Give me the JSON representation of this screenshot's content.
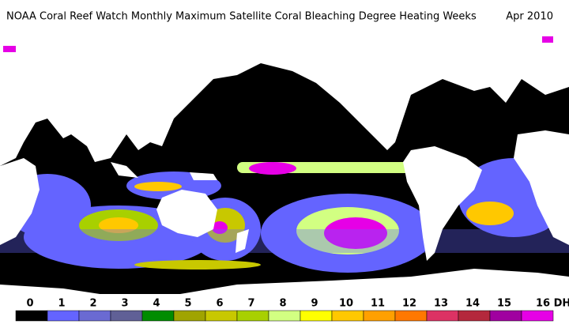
{
  "header": {
    "title": "NOAA Coral Reef Watch Monthly Maximum Satellite Coral Bleaching Degree Heating Weeks",
    "date": "Apr 2010"
  },
  "legend": {
    "items": [
      {
        "label": "0",
        "color": "#000000"
      },
      {
        "label": "1",
        "color": "#6464ff"
      },
      {
        "label": "2",
        "color": "#6a6ad2"
      },
      {
        "label": "3",
        "color": "#606096"
      },
      {
        "label": "4",
        "color": "#008c00"
      },
      {
        "label": "5",
        "color": "#a0a400"
      },
      {
        "label": "6",
        "color": "#c8c800"
      },
      {
        "label": "7",
        "color": "#a8d000"
      },
      {
        "label": "8",
        "color": "#d2ff82"
      },
      {
        "label": "9",
        "color": "#ffff00"
      },
      {
        "label": "10",
        "color": "#ffc800"
      },
      {
        "label": "11",
        "color": "#ffa000"
      },
      {
        "label": "12",
        "color": "#ff7800"
      },
      {
        "label": "13",
        "color": "#dc3264"
      },
      {
        "label": "14",
        "color": "#b4283c"
      },
      {
        "label": "15",
        "color": "#a000a0"
      },
      {
        "label": "16 DHW",
        "color": "#e600e6"
      }
    ]
  }
}
